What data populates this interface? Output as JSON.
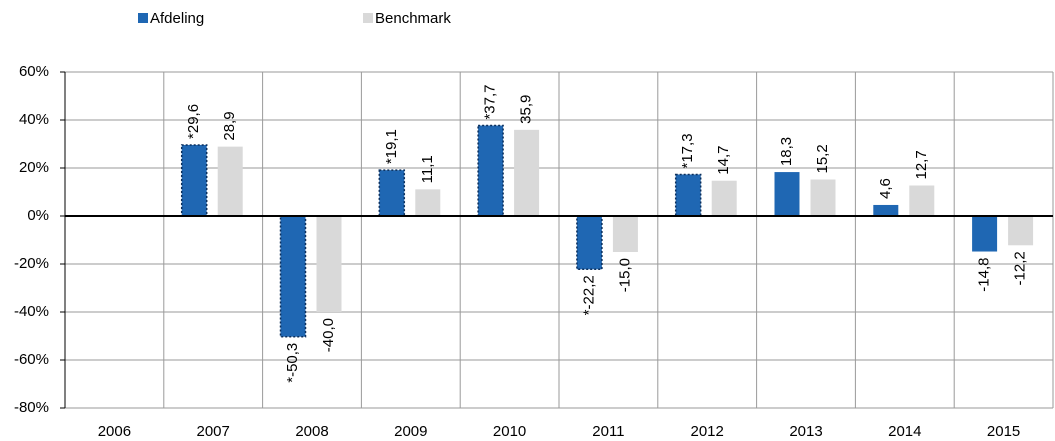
{
  "chart_data": {
    "type": "bar",
    "categories": [
      "2006",
      "2007",
      "2008",
      "2009",
      "2010",
      "2011",
      "2012",
      "2013",
      "2014",
      "2015"
    ],
    "series": [
      {
        "name": "Afdeling",
        "color": "#1f67b3",
        "values": [
          null,
          29.6,
          -50.3,
          19.1,
          37.7,
          -22.2,
          17.3,
          18.3,
          4.6,
          -14.8
        ],
        "value_labels": [
          null,
          "*29,6",
          "*-50,3",
          "*19,1",
          "*37,7",
          "*-22,2",
          "*17,3",
          "18,3",
          "4,6",
          "-14,8"
        ]
      },
      {
        "name": "Benchmark",
        "color": "#d9d9d9",
        "values": [
          null,
          28.9,
          -40.0,
          11.1,
          35.9,
          -15.0,
          14.7,
          15.2,
          12.7,
          -12.2
        ],
        "value_labels": [
          null,
          "28,9",
          "-40,0",
          "11,1",
          "35,9",
          "-15,0",
          "14,7",
          "15,2",
          "12,7",
          "-12,2"
        ]
      }
    ],
    "ylim": [
      -80,
      60
    ],
    "yticks": [
      {
        "value": -80,
        "label": "-80%"
      },
      {
        "value": -60,
        "label": "-60%"
      },
      {
        "value": -40,
        "label": "-40%"
      },
      {
        "value": -20,
        "label": "-20%"
      },
      {
        "value": 0,
        "label": "0%"
      },
      {
        "value": 20,
        "label": "20%"
      },
      {
        "value": 40,
        "label": "40%"
      },
      {
        "value": 60,
        "label": "60%"
      }
    ],
    "grid": true,
    "legend": "top"
  }
}
